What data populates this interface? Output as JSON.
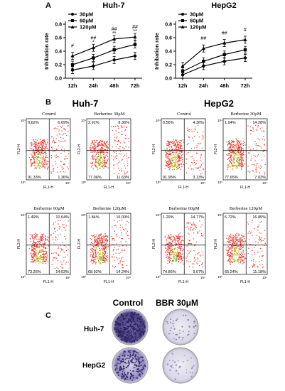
{
  "panelA": {
    "letter": "A",
    "charts": [
      {
        "title": "Huh-7",
        "legend": [
          "30μM",
          "60μM",
          "120μM"
        ],
        "ylabel": "Inhibation rate",
        "yticks": [
          "0.0",
          "0.2",
          "0.4",
          "0.6",
          "0.8"
        ],
        "sig": [
          [
            "#",
            ""
          ],
          [
            "##",
            "*"
          ],
          [
            "##",
            "**"
          ],
          [
            "##",
            "**"
          ]
        ]
      },
      {
        "title": "HepG2",
        "legend": [
          "30μM",
          "60μM",
          "120μM"
        ],
        "ylabel": "Inhibation rate",
        "yticks": [
          "0.0",
          "0.2",
          "0.4",
          "0.6",
          "0.8"
        ],
        "sig": [
          [
            "",
            ""
          ],
          [
            "##",
            ""
          ],
          [
            "##",
            ""
          ],
          [
            "#",
            ""
          ]
        ]
      }
    ]
  },
  "chart_data": [
    {
      "type": "line",
      "title": "Huh-7",
      "xlabel": "",
      "ylabel": "Inhibation rate",
      "categories": [
        "12h",
        "24h",
        "48h",
        "72h"
      ],
      "ylim": [
        0,
        0.8
      ],
      "series": [
        {
          "name": "30μM",
          "values": [
            0.12,
            0.18,
            0.27,
            0.33
          ]
        },
        {
          "name": "60μM",
          "values": [
            0.2,
            0.3,
            0.42,
            0.5
          ]
        },
        {
          "name": "120μM",
          "values": [
            0.33,
            0.45,
            0.58,
            0.61
          ]
        }
      ]
    },
    {
      "type": "line",
      "title": "HepG2",
      "xlabel": "",
      "ylabel": "Inhibation rate",
      "categories": [
        "12h",
        "24h",
        "48h",
        "72h"
      ],
      "ylim": [
        0,
        0.8
      ],
      "series": [
        {
          "name": "30μM",
          "values": [
            0.05,
            0.18,
            0.25,
            0.3
          ]
        },
        {
          "name": "60μM",
          "values": [
            0.1,
            0.25,
            0.35,
            0.42
          ]
        },
        {
          "name": "120μM",
          "values": [
            0.18,
            0.44,
            0.52,
            0.57
          ]
        }
      ]
    }
  ],
  "panelB": {
    "letter": "B",
    "left_title": "Huh-7",
    "right_title": "HepG2",
    "xaxis": "FL1-H",
    "yaxis": "FL2-H",
    "tick_lo": "10⁰",
    "tick_hi": "10⁴",
    "plots": [
      {
        "label": "Control",
        "ul": "0.62%",
        "ur": "6.69%",
        "ll": "91.33%",
        "lr": "1.36%"
      },
      {
        "label": "Berberine 30μM",
        "ul": "2.92%",
        "ur": "8.36%",
        "ll": "77.06%",
        "lr": "11.63%"
      },
      {
        "label": "Control",
        "ul": "0.56%",
        "ur": "4.36%",
        "ll": "91.95%",
        "lr": "3.13%"
      },
      {
        "label": "Berberine 30μM",
        "ul": "1.04%",
        "ur": "14.28%",
        "ll": "77.65%",
        "lr": "7.03%"
      },
      {
        "label": "Berberine 60μM",
        "ul": "1.49%",
        "ur": "10.64%",
        "ll": "73.26%",
        "lr": "14.63%"
      },
      {
        "label": "Berberine 120μM",
        "ul": "1.84%",
        "ur": "15.00%",
        "ll": "68.92%",
        "lr": "14.24%"
      },
      {
        "label": "Berberine 60μM",
        "ul": "1.29%",
        "ur": "14.77%",
        "ll": "74.86%",
        "lr": "9.07%"
      },
      {
        "label": "Berberine 120μM",
        "ul": "6.72%",
        "ur": "16.85%",
        "ll": "65.24%",
        "lr": "11.18%"
      }
    ]
  },
  "panelC": {
    "letter": "C",
    "col1": "Control",
    "col2": "BBR 30μM",
    "row1": "Huh-7",
    "row2": "HepG2"
  },
  "colors": {
    "line": "#000000",
    "dish_dark": "#4a3f80",
    "dish_light": "#d9d6e6",
    "dot_red": "#e8342a",
    "dot_yellow": "#f0c419"
  }
}
